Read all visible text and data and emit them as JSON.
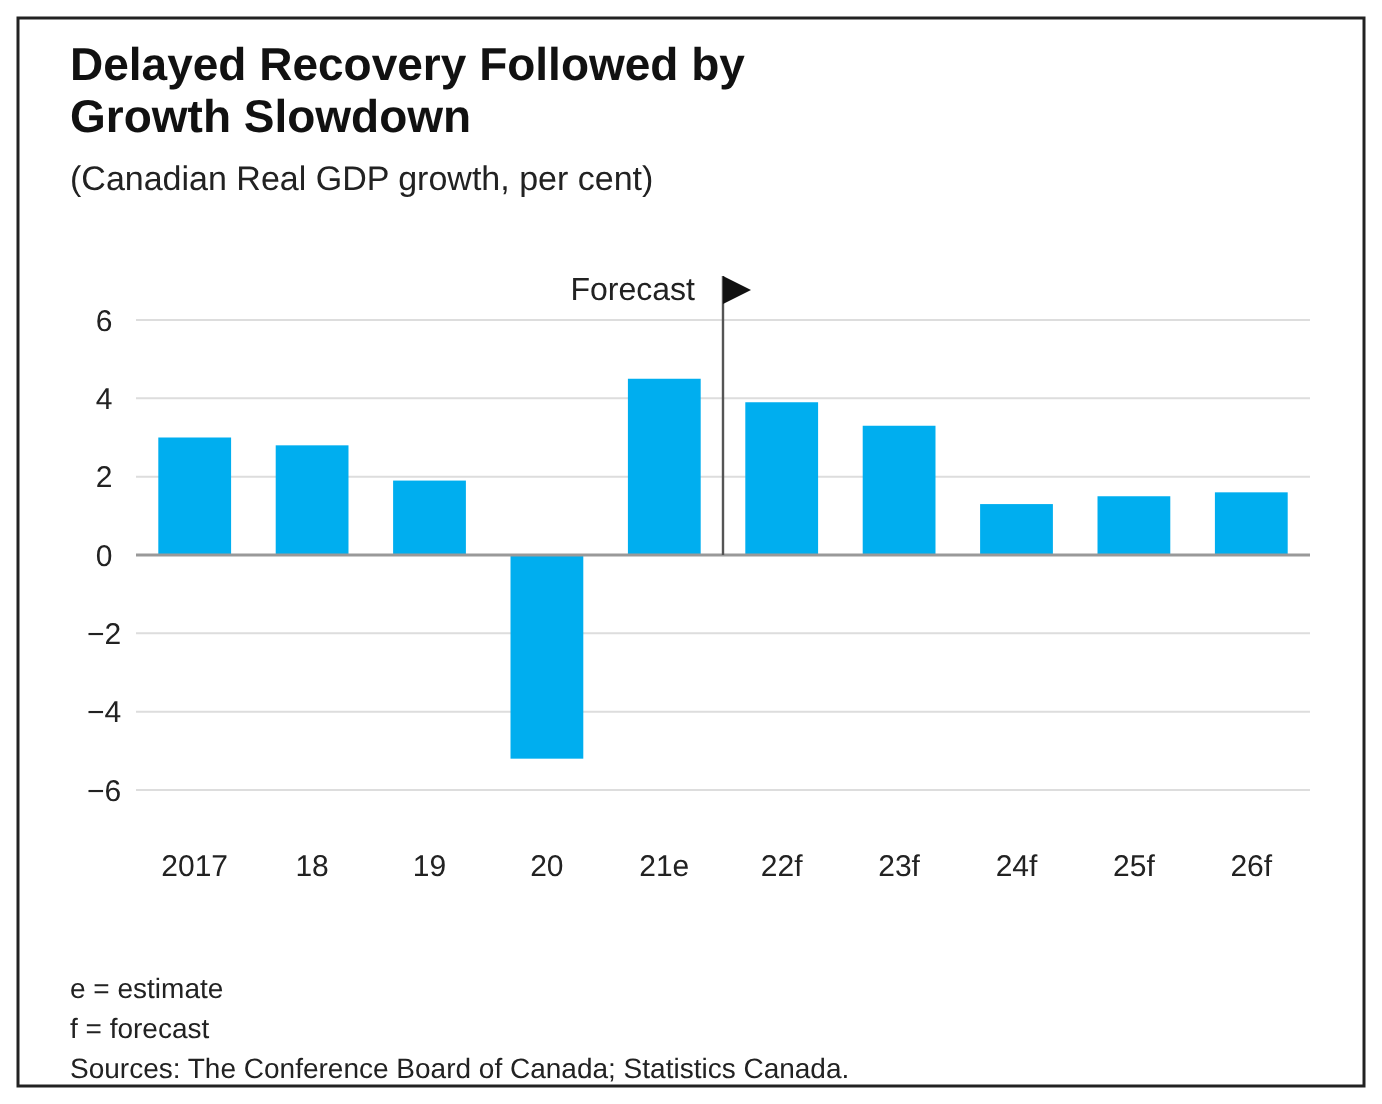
{
  "chart_data": {
    "type": "bar",
    "title": "Delayed Recovery Followed by Growth Slowdown",
    "subtitle": "(Canadian Real GDP growth, per cent)",
    "categories": [
      "2017",
      "18",
      "19",
      "20",
      "21e",
      "22f",
      "23f",
      "24f",
      "25f",
      "26f"
    ],
    "values": [
      3.0,
      2.8,
      1.9,
      -5.2,
      4.5,
      3.9,
      3.3,
      1.3,
      1.5,
      1.6
    ],
    "color": "#00aeef",
    "ylim": [
      -6,
      6
    ],
    "yticks": [
      -6,
      -4,
      -2,
      0,
      2,
      4,
      6
    ],
    "grid": "y",
    "ref_lines": [
      {
        "axis": "x",
        "value": "22f",
        "label": "Forecast",
        "color": "#555555"
      }
    ],
    "annotations": [
      "e = estimate",
      "f = forecast",
      "Sources: The Conference Board of Canada; Statistics Canada."
    ]
  }
}
